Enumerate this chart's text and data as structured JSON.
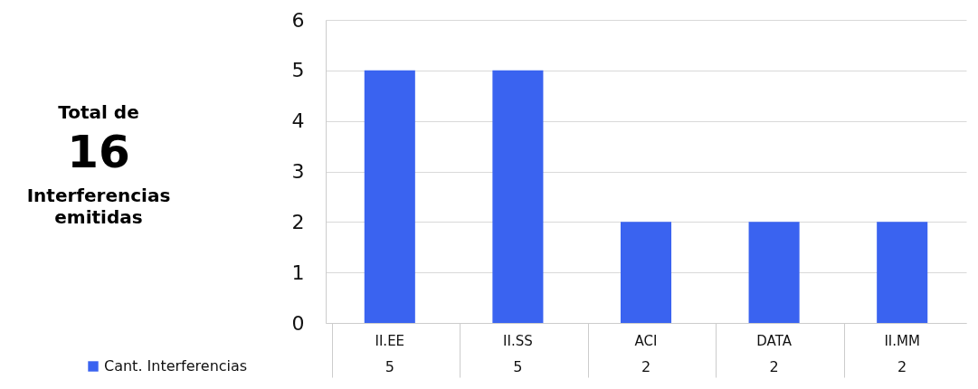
{
  "chart_data": {
    "type": "bar",
    "annotations": [
      "Total de",
      "16",
      "Interferencias emitidas"
    ],
    "categories": [
      "II.EE",
      "II.SS",
      "ACI",
      "DATA",
      "II.MM"
    ],
    "series": [
      {
        "name": "Cant. Interferencias",
        "color": "#3a63f0",
        "values": [
          5,
          5,
          2,
          2,
          2
        ]
      }
    ],
    "ylim": [
      0,
      6
    ],
    "yticks": [
      0,
      1,
      2,
      3,
      4,
      5,
      6
    ],
    "grid": "y",
    "legend": "bottom",
    "data_labels": true
  }
}
